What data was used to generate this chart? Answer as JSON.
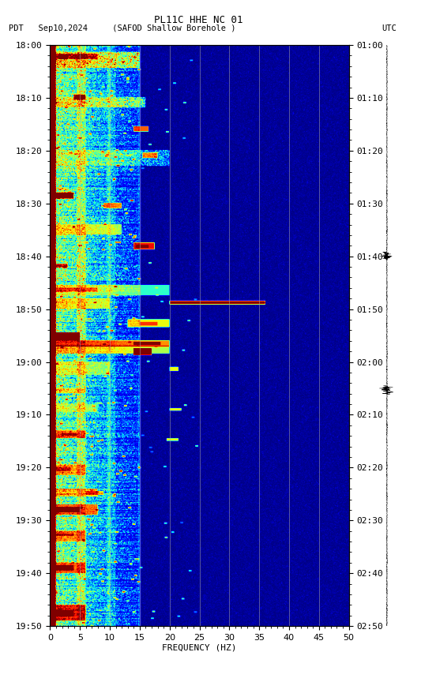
{
  "title_line1": "PL11C HHE NC 01",
  "title_line2_left": "PDT   Sep10,2024     (SAFOD Shallow Borehole )",
  "title_line2_right": "UTC",
  "xlabel": "FREQUENCY (HZ)",
  "freq_min": 0,
  "freq_max": 50,
  "ytick_pdt": [
    "18:00",
    "18:10",
    "18:20",
    "18:30",
    "18:40",
    "18:50",
    "19:00",
    "19:10",
    "19:20",
    "19:30",
    "19:40",
    "19:50"
  ],
  "ytick_utc": [
    "01:00",
    "01:10",
    "01:20",
    "01:30",
    "01:40",
    "01:50",
    "02:00",
    "02:10",
    "02:20",
    "02:30",
    "02:40",
    "02:50"
  ],
  "xticks": [
    0,
    5,
    10,
    15,
    20,
    25,
    30,
    35,
    40,
    45,
    50
  ],
  "colormap": "jet",
  "n_time": 1100,
  "n_freq": 500
}
